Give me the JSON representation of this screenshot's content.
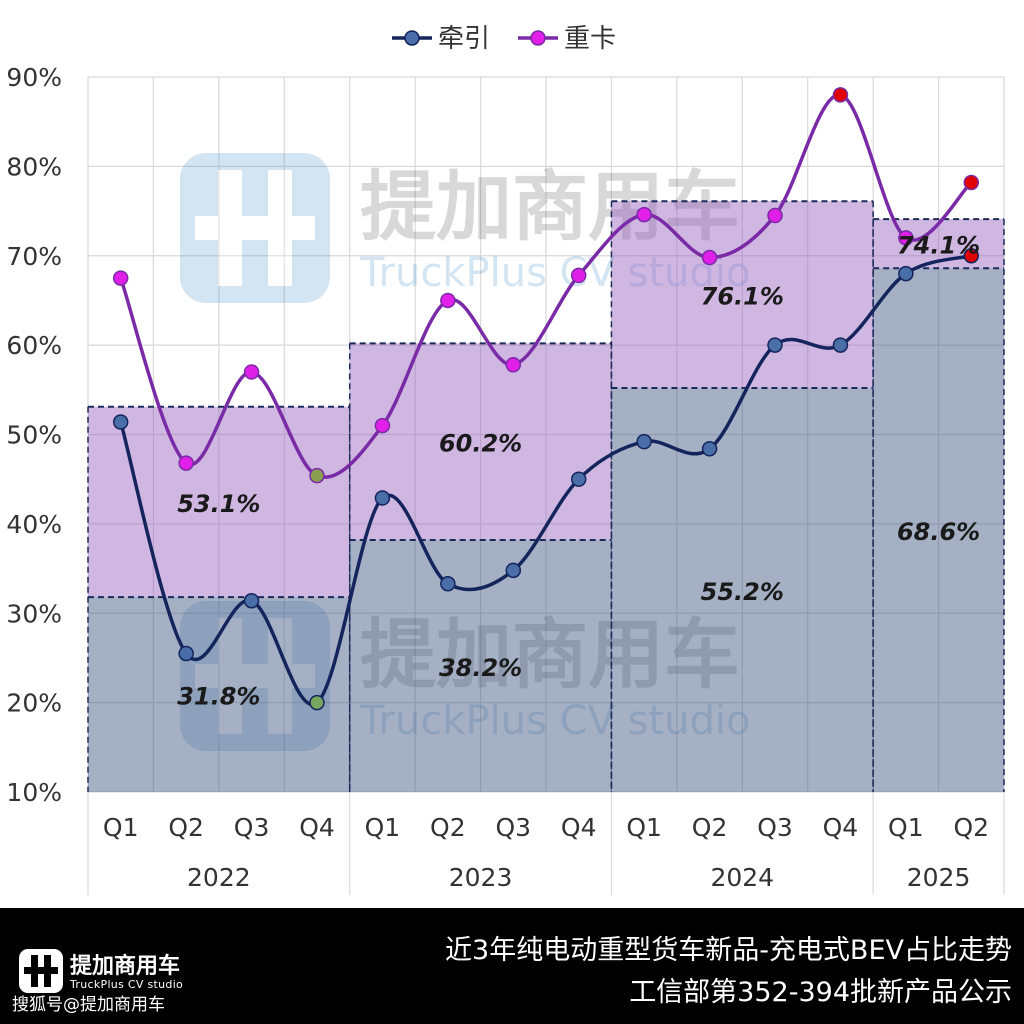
{
  "legend": [
    {
      "label": "牵引",
      "color": "#4a6ea8",
      "line_color": "#14245c"
    },
    {
      "label": "重卡",
      "color": "#e020e8",
      "line_color": "#7a2aa6"
    }
  ],
  "watermark": {
    "cn": "提加商用车",
    "en": "TruckPlus CV studio"
  },
  "footer": {
    "logo_cn": "提加商用车",
    "logo_en": "TruckPlus CV studio",
    "source": "搜狐号@提加商用车",
    "title_line1": "近3年纯电动重型货车新品-充电式BEV占比走势",
    "title_line2": "工信部第352-394批新产品公示"
  },
  "chart_data": {
    "type": "line",
    "ylim": [
      10,
      90
    ],
    "y_ticks": [
      "10%",
      "20%",
      "30%",
      "40%",
      "50%",
      "60%",
      "70%",
      "80%",
      "90%"
    ],
    "categories": [
      "Q1",
      "Q2",
      "Q3",
      "Q4",
      "Q1",
      "Q2",
      "Q3",
      "Q4",
      "Q1",
      "Q2",
      "Q3",
      "Q4",
      "Q1",
      "Q2"
    ],
    "year_groups": [
      {
        "year": "2022",
        "quarters": 4
      },
      {
        "year": "2023",
        "quarters": 4
      },
      {
        "year": "2024",
        "quarters": 4
      },
      {
        "year": "2025",
        "quarters": 2
      }
    ],
    "series": [
      {
        "name": "牵引",
        "values": [
          51.4,
          25.5,
          31.4,
          20.0,
          42.9,
          33.3,
          34.8,
          45.0,
          49.2,
          48.4,
          60.0,
          60.0,
          68.0,
          70.0
        ]
      },
      {
        "name": "重卡",
        "values": [
          67.5,
          46.8,
          57.0,
          45.4,
          51.0,
          65.0,
          57.8,
          67.8,
          74.6,
          69.8,
          74.5,
          88.0,
          72.0,
          78.2
        ]
      }
    ],
    "point_colors": {
      "重卡": {
        "3": "#8aa050",
        "11": "#e00000",
        "13": "#e00000"
      },
      "牵引": {
        "3": "#78a860",
        "13": "#e00000"
      }
    },
    "yearly_share": [
      {
        "year": "2022",
        "牵引": 31.8,
        "重卡": 53.1,
        "牵引_label": "31.8%",
        "重卡_label": "53.1%"
      },
      {
        "year": "2023",
        "牵引": 38.2,
        "重卡": 60.2,
        "牵引_label": "38.2%",
        "重卡_label": "60.2%"
      },
      {
        "year": "2024",
        "牵引": 55.2,
        "重卡": 76.1,
        "牵引_label": "55.2%",
        "重卡_label": "76.1%"
      },
      {
        "year": "2025",
        "牵引": 68.6,
        "重卡": 74.1,
        "牵引_label": "68.6%",
        "重卡_label": "74.1%"
      }
    ],
    "grid": true,
    "legend_position": "top-center"
  }
}
